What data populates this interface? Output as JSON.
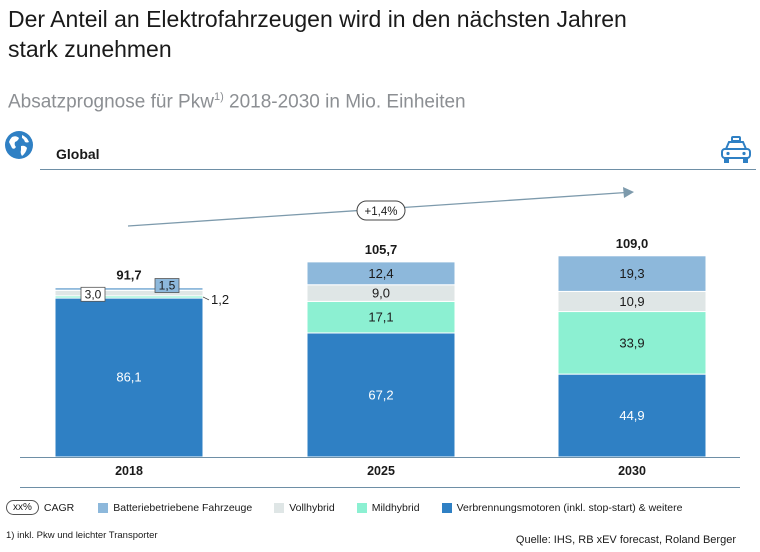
{
  "title": "Der Anteil an Elektrofahrzeugen wird in den nächsten Jahren\nstark zunehmen",
  "subtitle": {
    "text_before": "Absatzprognose für Pkw",
    "sup": "1)",
    "text_after": " 2018-2030 in Mio. Einheiten"
  },
  "region_label": "Global",
  "icons": {
    "globe": "globe-icon",
    "car": "car-icon"
  },
  "colors": {
    "bev": "#8db8db",
    "full_hybrid": "#dfe6e6",
    "mild_hybrid": "#8cf0d2",
    "ice": "#2f80c4",
    "arrow": "#7d9aac"
  },
  "chart_data": {
    "type": "bar",
    "stacked": true,
    "categories": [
      "2018",
      "2025",
      "2030"
    ],
    "series": [
      {
        "key": "ice",
        "name": "Verbrennungsmotoren (inkl. stop-start) & weitere",
        "values": [
          86.1,
          67.2,
          44.9
        ],
        "labels": [
          "86,1",
          "67,2",
          "44,9"
        ]
      },
      {
        "key": "mild_hybrid",
        "name": "Mildhybrid",
        "values": [
          1.2,
          17.1,
          33.9
        ],
        "labels": [
          "1,2",
          "17,1",
          "33,9"
        ]
      },
      {
        "key": "full_hybrid",
        "name": "Vollhybrid",
        "values": [
          3.0,
          9.0,
          10.9
        ],
        "labels": [
          "3,0",
          "9,0",
          "10,9"
        ]
      },
      {
        "key": "bev",
        "name": "Batteriebetriebene Fahrzeuge",
        "values": [
          1.5,
          12.4,
          19.3
        ],
        "labels": [
          "1,5",
          "12,4",
          "19,3"
        ]
      }
    ],
    "totals": [
      91.7,
      105.7,
      109.0
    ],
    "total_labels": [
      "91,7",
      "105,7",
      "109,0"
    ],
    "cagr_label": "+1,4%",
    "ylim": [
      0,
      120
    ]
  },
  "legend": {
    "cagr_symbol": "xx%",
    "cagr_text": "CAGR",
    "items": [
      {
        "key": "bev",
        "label": "Batteriebetriebene Fahrzeuge"
      },
      {
        "key": "full_hybrid",
        "label": "Vollhybrid"
      },
      {
        "key": "mild_hybrid",
        "label": "Mildhybrid"
      },
      {
        "key": "ice",
        "label": "Verbrennungsmotoren (inkl. stop-start) & weitere"
      }
    ]
  },
  "footnote": "1) inkl. Pkw und leichter Transporter",
  "source": "Quelle: IHS, RB xEV forecast, Roland Berger"
}
